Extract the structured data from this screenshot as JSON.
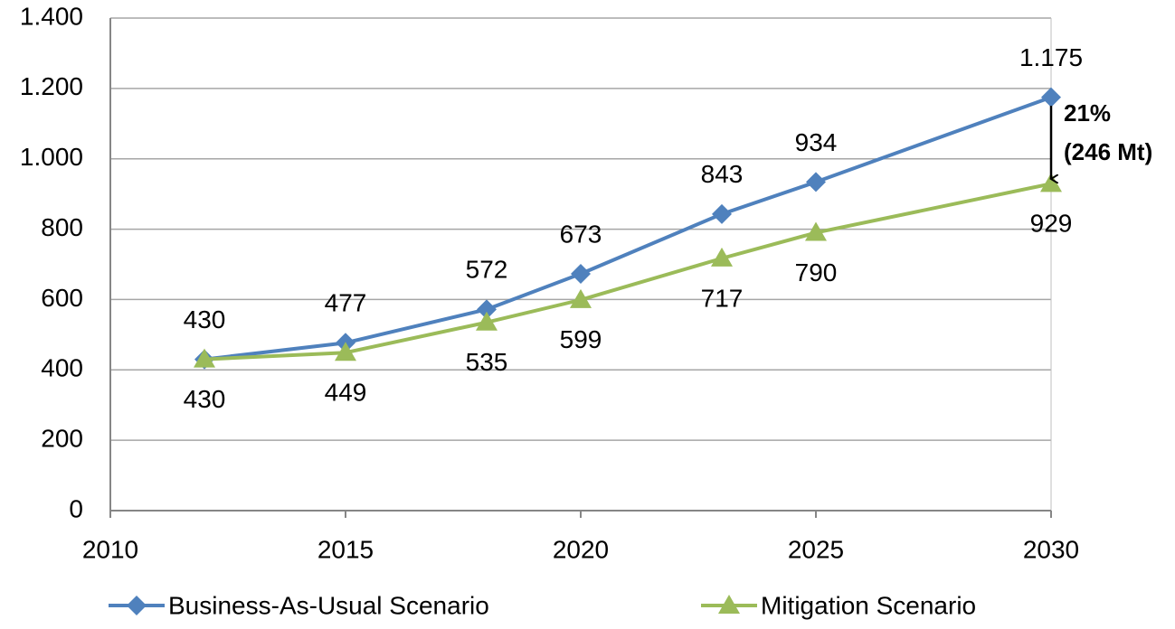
{
  "chart_data": {
    "type": "line",
    "x": [
      2012,
      2015,
      2018,
      2020,
      2023,
      2025,
      2030
    ],
    "series": [
      {
        "name": "Business-As-Usual Scenario",
        "color": "#4f81bd",
        "marker": "diamond",
        "values": [
          430,
          477,
          572,
          673,
          843,
          934,
          1175
        ],
        "value_labels": [
          "430",
          "477",
          "572",
          "673",
          "843",
          "934",
          "1.175"
        ]
      },
      {
        "name": "Mitigation Scenario",
        "color": "#9bbb59",
        "marker": "triangle",
        "values": [
          430,
          449,
          535,
          599,
          717,
          790,
          929
        ]
      }
    ],
    "xlim": [
      2010,
      2030
    ],
    "xticks": [
      2010,
      2015,
      2020,
      2025,
      2030
    ],
    "ylim": [
      0,
      1400
    ],
    "yticks": [
      0,
      200,
      400,
      600,
      800,
      {
        "value": 1000,
        "label": "1.000"
      },
      {
        "value": 1200,
        "label": "1.200"
      },
      {
        "value": 1400,
        "label": "1.400"
      }
    ],
    "grid": true,
    "legend": "bottom",
    "annotations": [
      "21%",
      "(246 Mt)"
    ]
  }
}
